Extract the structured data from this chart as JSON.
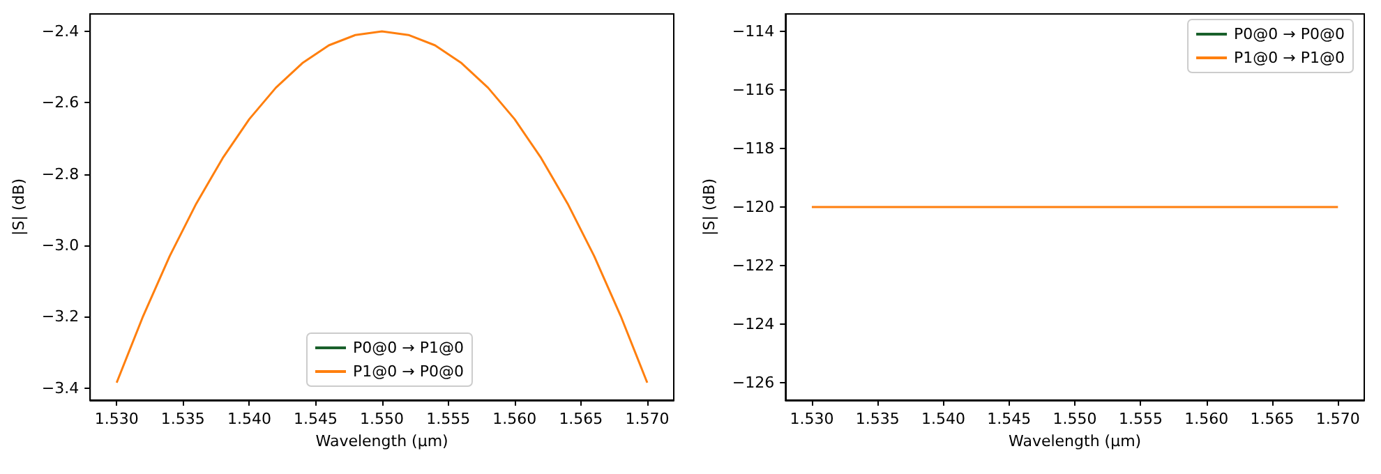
{
  "chart_data": [
    {
      "type": "line",
      "xlabel": "Wavelength (µm)",
      "ylabel": "|S| (dB)",
      "legend": "bottom",
      "grid": false,
      "line_style": "solid",
      "marker": "none",
      "x": [
        1.53,
        1.532,
        1.534,
        1.536,
        1.538,
        1.54,
        1.542,
        1.544,
        1.546,
        1.548,
        1.55,
        1.552,
        1.554,
        1.556,
        1.558,
        1.56,
        1.562,
        1.564,
        1.566,
        1.568,
        1.57
      ],
      "series": [
        {
          "name": "P0@0 → P1@0",
          "color": "#19602b",
          "values": [
            null,
            null,
            null,
            null,
            null,
            null,
            null,
            null,
            null,
            null,
            null,
            null,
            null,
            null,
            null,
            null,
            null,
            null,
            null,
            null,
            null
          ]
        },
        {
          "name": "P1@0 → P0@0",
          "color": "#ff7f0e",
          "values": [
            -3.385,
            -3.198,
            -3.03,
            -2.883,
            -2.755,
            -2.646,
            -2.558,
            -2.489,
            -2.439,
            -2.41,
            -2.4,
            -2.41,
            -2.439,
            -2.489,
            -2.558,
            -2.646,
            -2.755,
            -2.883,
            -3.03,
            -3.198,
            -3.385
          ]
        }
      ],
      "xlim": [
        1.528,
        1.572
      ],
      "xticks": [
        {
          "value": 1.53,
          "label": "1.530"
        },
        {
          "value": 1.535,
          "label": "1.535"
        },
        {
          "value": 1.54,
          "label": "1.540"
        },
        {
          "value": 1.545,
          "label": "1.545"
        },
        {
          "value": 1.55,
          "label": "1.550"
        },
        {
          "value": 1.555,
          "label": "1.555"
        },
        {
          "value": 1.56,
          "label": "1.560"
        },
        {
          "value": 1.565,
          "label": "1.565"
        },
        {
          "value": 1.57,
          "label": "1.570"
        }
      ],
      "ylim": [
        -3.434,
        -2.351
      ],
      "yticks": [
        {
          "value": -3.4,
          "label": "−3.4"
        },
        {
          "value": -3.2,
          "label": "−3.2"
        },
        {
          "value": -3.0,
          "label": "−3.0"
        },
        {
          "value": -2.8,
          "label": "−2.8"
        },
        {
          "value": -2.6,
          "label": "−2.6"
        },
        {
          "value": -2.4,
          "label": "−2.4"
        }
      ]
    },
    {
      "type": "line",
      "xlabel": "Wavelength (µm)",
      "ylabel": "|S| (dB)",
      "legend": "top right",
      "grid": false,
      "line_style": "solid",
      "marker": "none",
      "x": [
        1.53,
        1.57
      ],
      "series": [
        {
          "name": "P0@0 → P0@0",
          "color": "#19602b",
          "values": [
            null,
            null
          ]
        },
        {
          "name": "P1@0 → P1@0",
          "color": "#ff7f0e",
          "values": [
            -120,
            -120
          ]
        }
      ],
      "xlim": [
        1.528,
        1.572
      ],
      "xticks": [
        {
          "value": 1.53,
          "label": "1.530"
        },
        {
          "value": 1.535,
          "label": "1.535"
        },
        {
          "value": 1.54,
          "label": "1.540"
        },
        {
          "value": 1.545,
          "label": "1.545"
        },
        {
          "value": 1.55,
          "label": "1.550"
        },
        {
          "value": 1.555,
          "label": "1.555"
        },
        {
          "value": 1.56,
          "label": "1.560"
        },
        {
          "value": 1.565,
          "label": "1.565"
        },
        {
          "value": 1.57,
          "label": "1.570"
        }
      ],
      "ylim": [
        -126.6,
        -113.4
      ],
      "yticks": [
        {
          "value": -126,
          "label": "−126"
        },
        {
          "value": -124,
          "label": "−124"
        },
        {
          "value": -122,
          "label": "−122"
        },
        {
          "value": -120,
          "label": "−120"
        },
        {
          "value": -118,
          "label": "−118"
        },
        {
          "value": -116,
          "label": "−116"
        },
        {
          "value": -114,
          "label": "−114"
        }
      ]
    }
  ]
}
